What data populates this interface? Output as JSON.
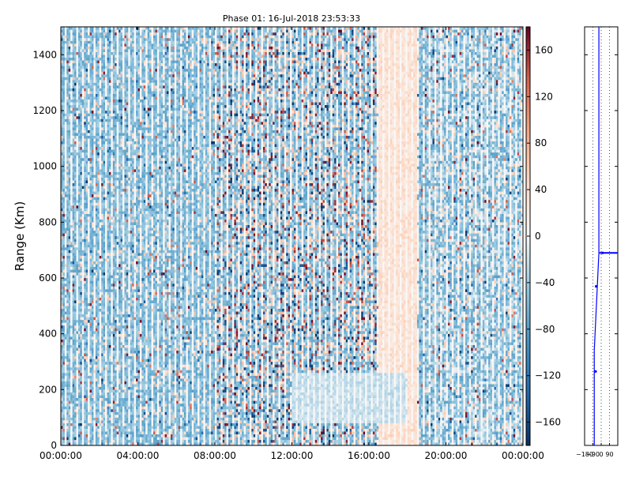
{
  "chart_data": [
    {
      "type": "heatmap",
      "title": "Phase 01: 16-Jul-2018 23:53:33",
      "xlabel": "",
      "ylabel": "Range (Km)",
      "x_ticks": [
        "00:00:00",
        "04:00:00",
        "08:00:00",
        "12:00:00",
        "16:00:00",
        "20:00:00",
        "00:00:00"
      ],
      "x_range_hours": [
        0,
        24
      ],
      "y_ticks": [
        0,
        200,
        400,
        600,
        800,
        1000,
        1200,
        1400
      ],
      "ylim": [
        0,
        1500
      ],
      "colormap": "RdBu_r",
      "colorbar": {
        "ticks": [
          -160,
          -120,
          -80,
          -40,
          0,
          40,
          80,
          120,
          160
        ],
        "tick_labels": [
          "−160",
          "−120",
          "−80",
          "−40",
          "0",
          "40",
          "80",
          "120",
          "160"
        ],
        "range": [
          -180,
          180
        ]
      },
      "description_of_pattern": {
        "columns": 240,
        "rows": 150,
        "noisy_red_band_hours": [
          8,
          17
        ],
        "orange_bias_band_hours": [
          16.5,
          18.5
        ],
        "smooth_pale_region": {
          "hours": [
            12,
            18
          ],
          "range_km": [
            80,
            260
          ]
        }
      },
      "colors": {
        "low": "#053061",
        "mid": "#f7f7f7",
        "high": "#67001f"
      }
    },
    {
      "type": "line",
      "title": "",
      "x_ticks": [
        -180,
        -90,
        0,
        90
      ],
      "x_tick_labels": [
        "−180",
        "−90",
        "0",
        "90"
      ],
      "xlim": [
        -180,
        180
      ],
      "ylim": [
        0,
        1500
      ],
      "grid": "x dotted",
      "line_color": "#0000ff",
      "series": [
        {
          "points": [
            [
              -75,
              0
            ],
            [
              -75,
              340
            ],
            [
              -25,
              690
            ],
            [
              -25,
              1500
            ]
          ]
        },
        {
          "markers": [
            [
              -60,
              265
            ],
            [
              -55,
              570
            ],
            [
              15,
              690
            ]
          ]
        }
      ]
    }
  ]
}
